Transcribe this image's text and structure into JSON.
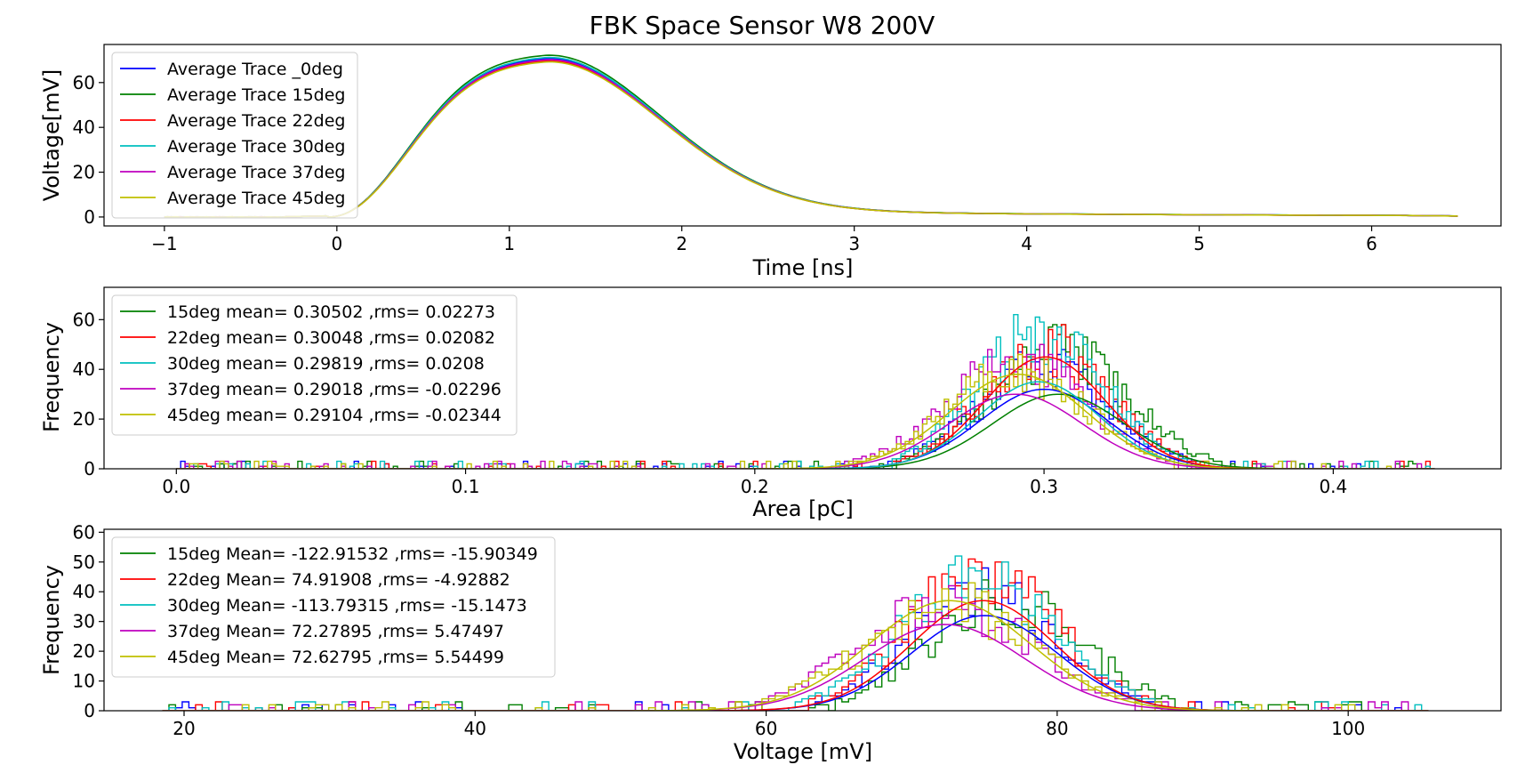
{
  "title": "FBK Space Sensor W8 200V",
  "colors": {
    "b": "#0000ff",
    "g": "#008000",
    "r": "#ff0000",
    "c": "#00bfbf",
    "m": "#bf00bf",
    "y": "#bfbf00"
  },
  "chart_data": [
    {
      "type": "line",
      "xlabel": "Time [ns]",
      "ylabel": "Voltage[mV]",
      "xlim": [
        -1.35,
        6.75
      ],
      "ylim": [
        -4,
        77
      ],
      "xticks": [
        -1,
        0,
        1,
        2,
        3,
        4,
        5,
        6
      ],
      "xtick_labels": [
        "−1",
        "0",
        "1",
        "2",
        "3",
        "4",
        "5",
        "6"
      ],
      "yticks": [
        0,
        20,
        40,
        60
      ],
      "legend_position": "upper-left",
      "series": [
        {
          "name": "Average Trace _0deg",
          "color": "b",
          "amp": 71.5,
          "seed": 1
        },
        {
          "name": "Average Trace 15deg",
          "color": "g",
          "amp": 73.0,
          "seed": 2
        },
        {
          "name": "Average Trace 22deg",
          "color": "r",
          "amp": 70.5,
          "seed": 3
        },
        {
          "name": "Average Trace 30deg",
          "color": "c",
          "amp": 72.0,
          "seed": 4
        },
        {
          "name": "Average Trace 37deg",
          "color": "m",
          "amp": 71.0,
          "seed": 5
        },
        {
          "name": "Average Trace 45deg",
          "color": "y",
          "amp": 70.0,
          "seed": 6
        }
      ]
    },
    {
      "type": "histogram",
      "xlabel": "Area [pC]",
      "ylabel": "Frequency",
      "xlim": [
        -0.025,
        0.458
      ],
      "ylim": [
        0,
        73
      ],
      "xticks": [
        0.0,
        0.1,
        0.2,
        0.3,
        0.4
      ],
      "xtick_labels": [
        "0.0",
        "0.1",
        "0.2",
        "0.3",
        "0.4"
      ],
      "yticks": [
        0,
        20,
        40,
        60
      ],
      "bins_range": [
        0.0,
        0.435
      ],
      "n_bins": 290,
      "legend_position": "upper-left",
      "series": [
        {
          "name": "",
          "color": "b",
          "mean": 0.3,
          "rms": 0.022,
          "fit_peak": 32,
          "hist_peak": 52,
          "seed": 11
        },
        {
          "name": "15deg mean= 0.30502 ,rms= 0.02273",
          "color": "g",
          "mean": 0.30502,
          "rms": 0.02273,
          "fit_peak": 30,
          "hist_peak": 60,
          "seed": 12
        },
        {
          "name": "22deg mean= 0.30048 ,rms= 0.02082",
          "color": "r",
          "mean": 0.30048,
          "rms": 0.02082,
          "fit_peak": 45,
          "hist_peak": 62,
          "seed": 13
        },
        {
          "name": "30deg mean= 0.29819 ,rms= 0.0208",
          "color": "c",
          "mean": 0.29819,
          "rms": 0.0208,
          "fit_peak": 35,
          "hist_peak": 70,
          "seed": 14
        },
        {
          "name": "37deg mean= 0.29018 ,rms= -0.02296",
          "color": "m",
          "mean": 0.29018,
          "rms": 0.02296,
          "fit_peak": 30,
          "hist_peak": 56,
          "seed": 15
        },
        {
          "name": "45deg mean= 0.29104 ,rms= -0.02344",
          "color": "y",
          "mean": 0.29104,
          "rms": 0.02344,
          "fit_peak": 38,
          "hist_peak": 50,
          "seed": 16
        }
      ]
    },
    {
      "type": "histogram",
      "xlabel": "Voltage [mV]",
      "ylabel": "Frequency",
      "xlim": [
        14.5,
        110.5
      ],
      "ylim": [
        0,
        61
      ],
      "xticks": [
        20,
        40,
        60,
        80,
        100
      ],
      "xtick_labels": [
        "20",
        "40",
        "60",
        "80",
        "100"
      ],
      "yticks": [
        0,
        10,
        20,
        30,
        40,
        50,
        60
      ],
      "bins_range": [
        18.5,
        105.5
      ],
      "n_bins": 190,
      "legend_position": "upper-left",
      "series": [
        {
          "name": "",
          "color": "b",
          "mean": 75.0,
          "rms": 5.0,
          "fit_peak": 32,
          "hist_peak": 50,
          "seed": 21
        },
        {
          "name": "15deg Mean= -122.91532 ,rms= -15.90349",
          "color": "g",
          "mean": 76.5,
          "rms": 5.0,
          "fit_peak": 0,
          "hist_peak": 48,
          "seed": 22
        },
        {
          "name": "22deg Mean= 74.91908 ,rms= -4.92882",
          "color": "r",
          "mean": 74.91908,
          "rms": 4.92882,
          "fit_peak": 37,
          "hist_peak": 58,
          "seed": 23
        },
        {
          "name": "30deg Mean= -113.79315 ,rms= -15.1473",
          "color": "c",
          "mean": 74.5,
          "rms": 5.0,
          "fit_peak": 0,
          "hist_peak": 57,
          "seed": 24
        },
        {
          "name": "37deg Mean= 72.27895 ,rms= 5.47497",
          "color": "m",
          "mean": 72.27895,
          "rms": 5.47497,
          "fit_peak": 29,
          "hist_peak": 48,
          "seed": 25
        },
        {
          "name": "45deg Mean= 72.62795 ,rms= 5.54499",
          "color": "y",
          "mean": 72.62795,
          "rms": 5.54499,
          "fit_peak": 37,
          "hist_peak": 46,
          "seed": 26
        }
      ]
    }
  ]
}
